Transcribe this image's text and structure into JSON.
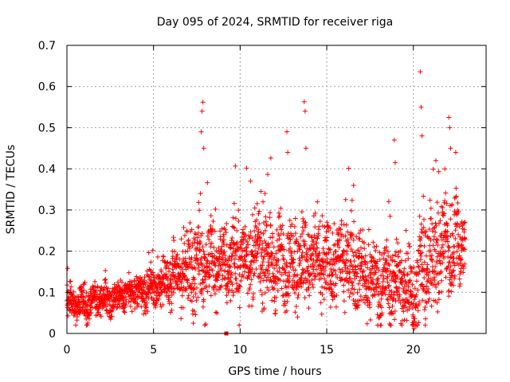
{
  "chart_data": {
    "type": "scatter",
    "title": "Day 095 of 2024, SRMTID for receiver riga",
    "xlabel": "GPS time / hours",
    "ylabel": "SRMTID / TECUs",
    "xlim": [
      0,
      24.2
    ],
    "ylim": [
      0,
      0.7
    ],
    "x_ticks": [
      0,
      5,
      10,
      15,
      20
    ],
    "x_tick_labels": [
      "0",
      "5",
      "10",
      "15",
      "20"
    ],
    "y_ticks": [
      0,
      0.1,
      0.2,
      0.3,
      0.4,
      0.5,
      0.6,
      0.7
    ],
    "y_tick_labels": [
      "0",
      "0.1",
      "0.2",
      "0.3",
      "0.4",
      "0.5",
      "0.6",
      "0.7"
    ],
    "grid": true,
    "marker": "plus",
    "color": "#ff0000",
    "series_envelope": {
      "description": "approximate baseline level and spread by hour",
      "hours": [
        0,
        1,
        2,
        3,
        4,
        5,
        6,
        7,
        8,
        9,
        10,
        11,
        12,
        13,
        14,
        15,
        16,
        17,
        18,
        19,
        20,
        21,
        22,
        23
      ],
      "baseline": [
        0.08,
        0.07,
        0.08,
        0.09,
        0.1,
        0.11,
        0.13,
        0.16,
        0.17,
        0.17,
        0.18,
        0.19,
        0.17,
        0.17,
        0.18,
        0.16,
        0.18,
        0.15,
        0.12,
        0.13,
        0.1,
        0.18,
        0.21,
        0.23
      ],
      "spread": [
        0.03,
        0.03,
        0.03,
        0.03,
        0.03,
        0.04,
        0.05,
        0.08,
        0.08,
        0.07,
        0.08,
        0.07,
        0.08,
        0.08,
        0.08,
        0.07,
        0.07,
        0.07,
        0.07,
        0.08,
        0.08,
        0.1,
        0.1,
        0.09
      ]
    },
    "notable_points": [
      {
        "x": 7.85,
        "y": 0.562
      },
      {
        "x": 7.8,
        "y": 0.54
      },
      {
        "x": 7.75,
        "y": 0.49
      },
      {
        "x": 7.9,
        "y": 0.45
      },
      {
        "x": 12.7,
        "y": 0.49
      },
      {
        "x": 12.75,
        "y": 0.44
      },
      {
        "x": 13.7,
        "y": 0.563
      },
      {
        "x": 13.75,
        "y": 0.54
      },
      {
        "x": 13.8,
        "y": 0.45
      },
      {
        "x": 18.9,
        "y": 0.47
      },
      {
        "x": 18.95,
        "y": 0.415
      },
      {
        "x": 20.05,
        "y": 0.012
      },
      {
        "x": 20.4,
        "y": 0.636
      },
      {
        "x": 20.45,
        "y": 0.55
      },
      {
        "x": 20.5,
        "y": 0.48
      },
      {
        "x": 22.05,
        "y": 0.525
      },
      {
        "x": 22.1,
        "y": 0.5
      },
      {
        "x": 22.15,
        "y": 0.45
      },
      {
        "x": 21.3,
        "y": 0.42
      },
      {
        "x": 10.6,
        "y": 0.37
      },
      {
        "x": 16.55,
        "y": 0.36
      }
    ],
    "extra_marker": {
      "x": 9.2,
      "y": 0.0,
      "shape": "square"
    }
  }
}
